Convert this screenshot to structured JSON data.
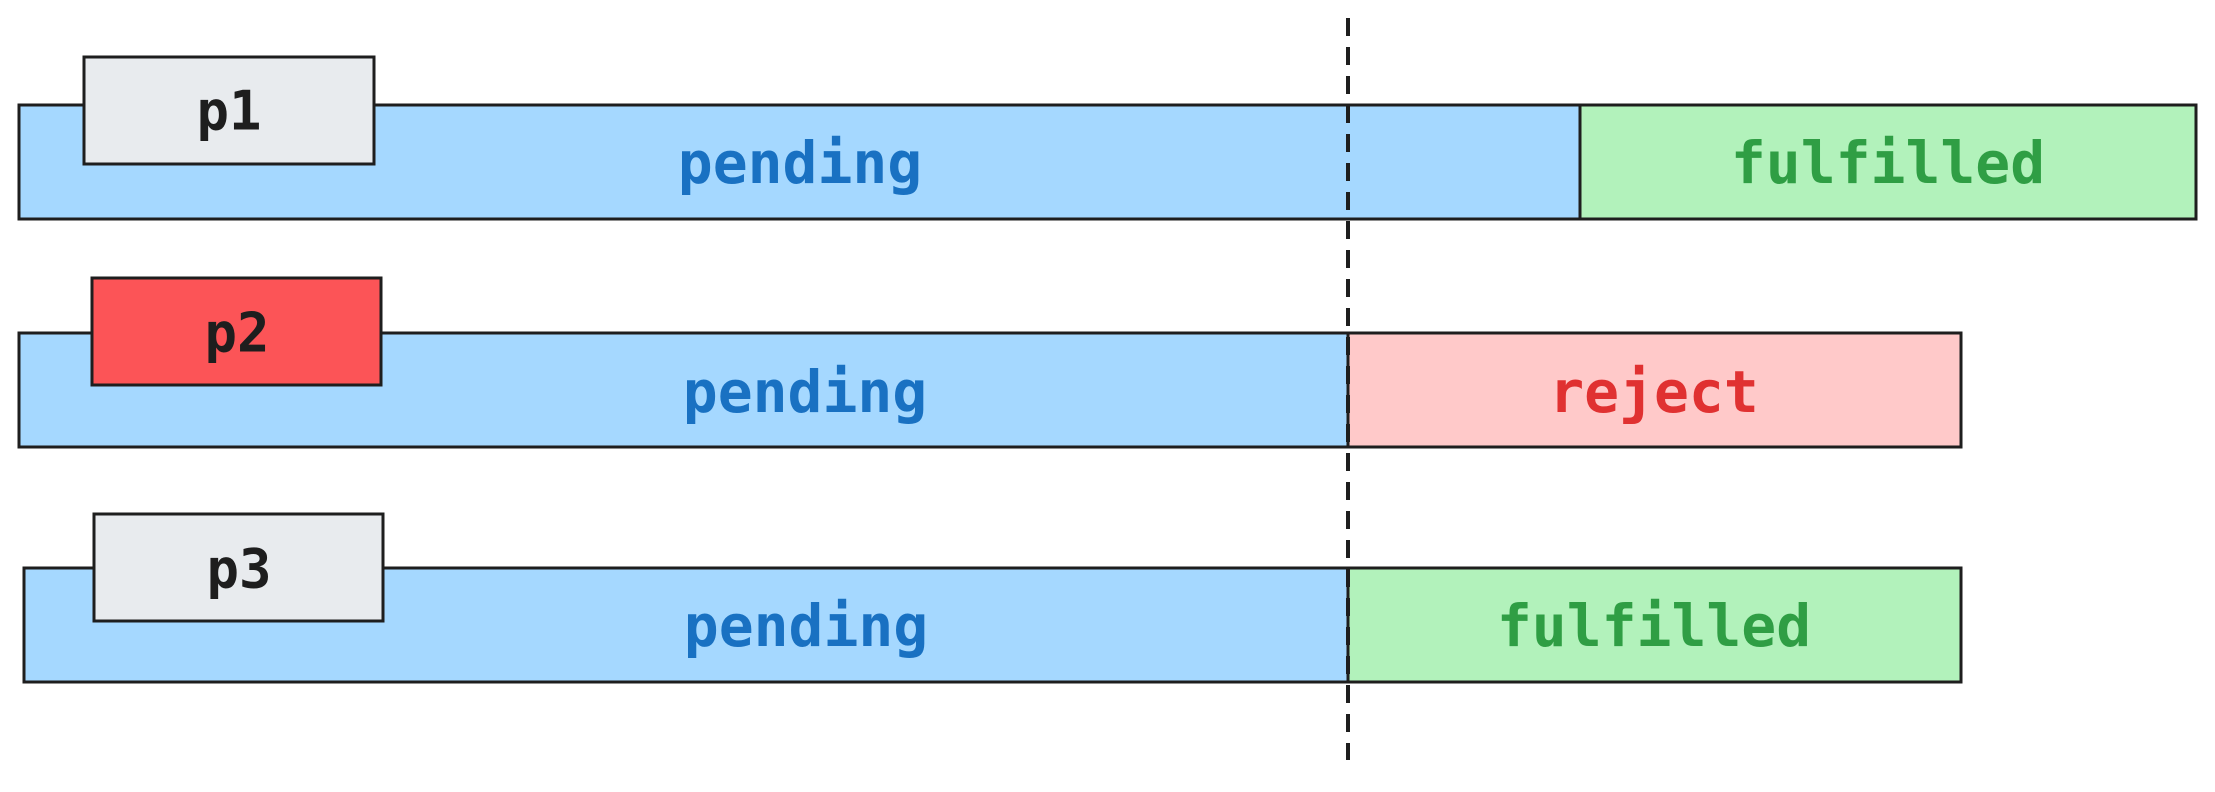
{
  "rows": [
    {
      "name": "p1",
      "tag_color": "#e8ebee",
      "pending_label": "pending",
      "result_label": "fulfilled",
      "result_type": "fulfilled"
    },
    {
      "name": "p2",
      "tag_color": "#fc5457",
      "pending_label": "pending",
      "result_label": "reject",
      "result_type": "reject"
    },
    {
      "name": "p3",
      "tag_color": "#e8ebee",
      "pending_label": "pending",
      "result_label": "fulfilled",
      "result_type": "fulfilled"
    }
  ],
  "colors": {
    "pending_fill": "#a5d8ff",
    "pending_text": "#1971c2",
    "fulfilled_fill": "#b2f2bb",
    "fulfilled_text": "#2f9e44",
    "reject_fill": "#ffc9c9",
    "reject_text": "#e03131",
    "stroke": "#1e1e1e",
    "tag_text": "#1e1e1e"
  }
}
